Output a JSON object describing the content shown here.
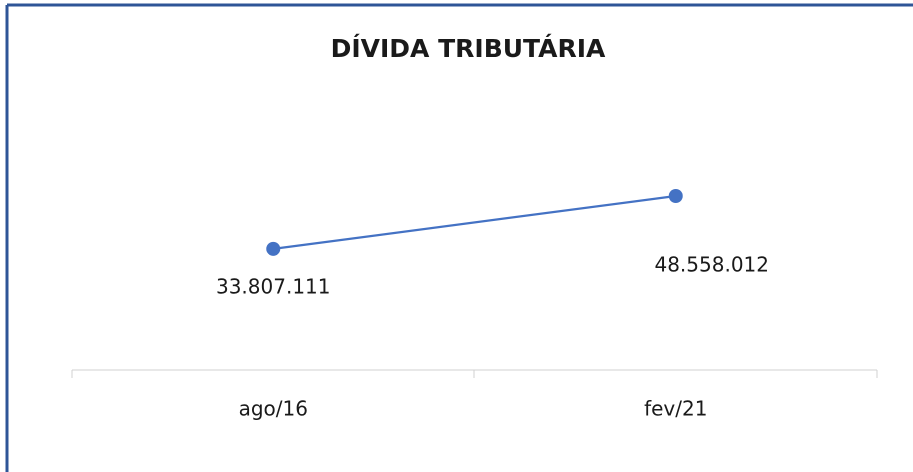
{
  "chart_data": {
    "type": "line",
    "title": "DÍVIDA TRIBUTÁRIA",
    "categories": [
      "ago/16",
      "fev/21"
    ],
    "values": [
      33807111,
      48558012
    ],
    "value_labels": [
      "33.807.111",
      "48.558.012"
    ],
    "color": "#4472c4",
    "ylim": [
      0,
      60000000
    ]
  }
}
